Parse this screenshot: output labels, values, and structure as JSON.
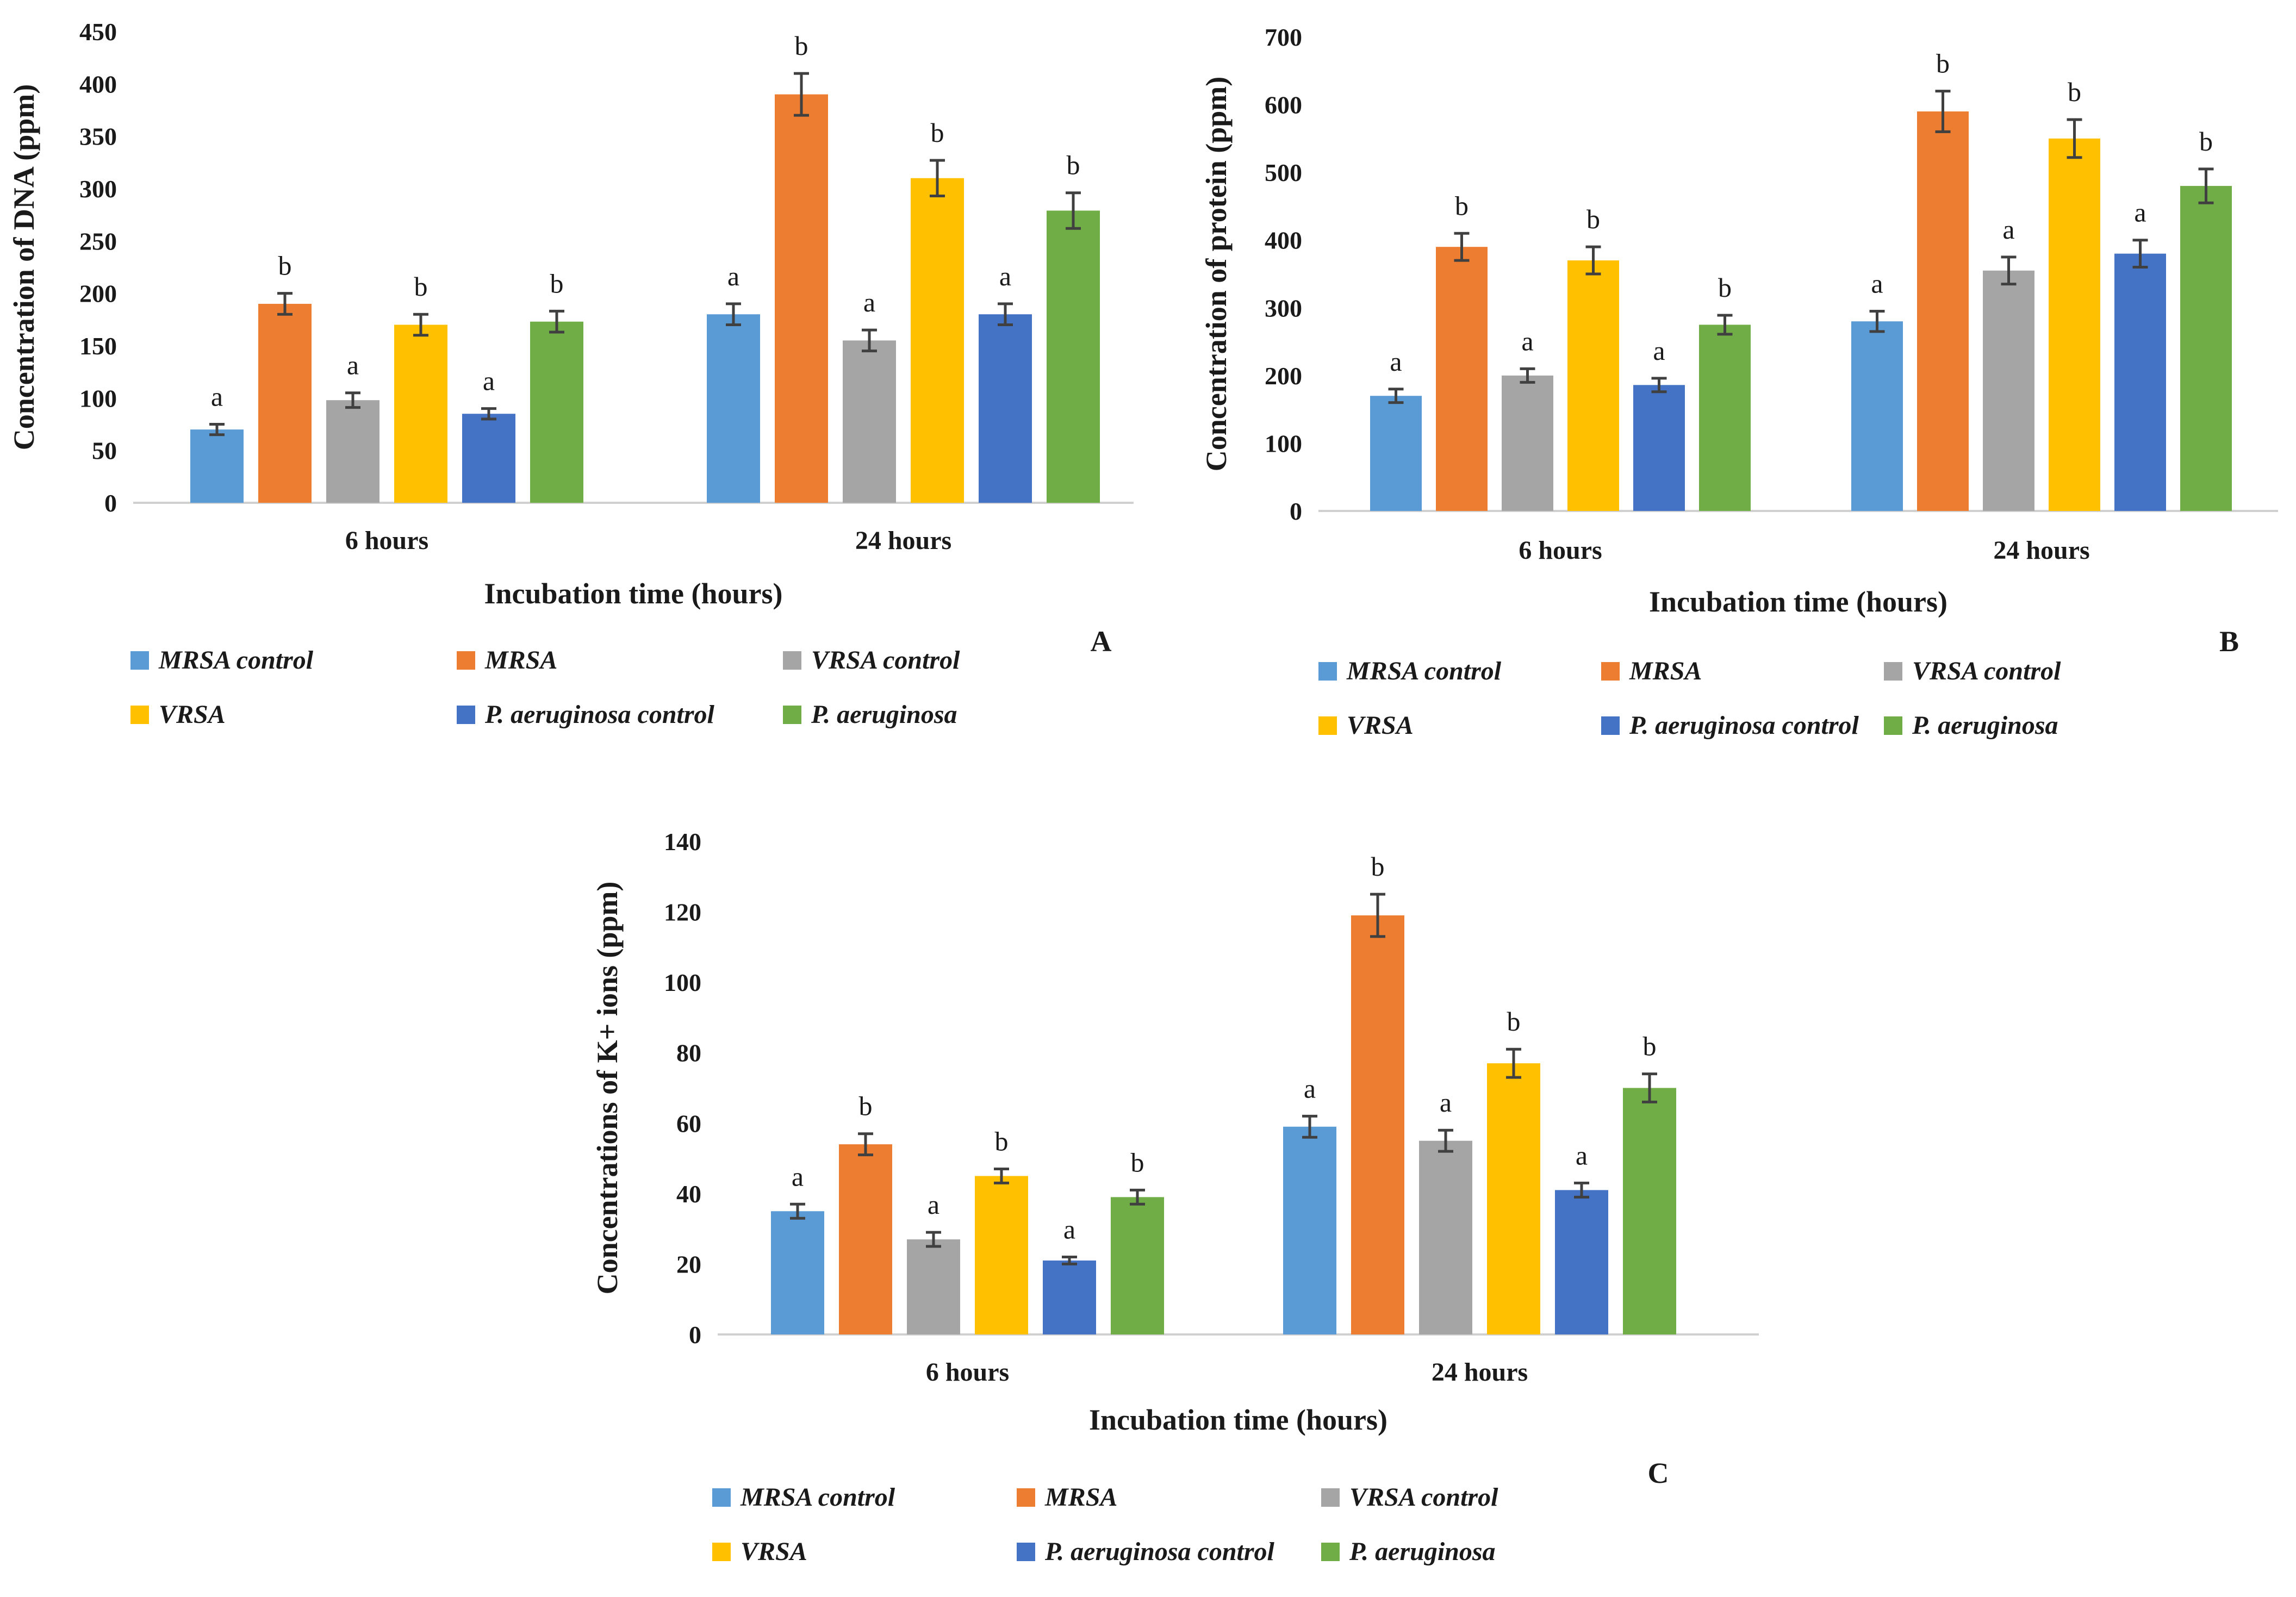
{
  "chart_data": [
    {
      "type": "bar",
      "panel": "A",
      "xlabel": "Incubation time (hours)",
      "ylabel": "Concentration of DNA (ppm)",
      "ylim": [
        0,
        450
      ],
      "yticks": [
        0,
        50,
        100,
        150,
        200,
        250,
        300,
        350,
        400,
        450
      ],
      "categories": [
        "6 hours",
        "24 hours"
      ],
      "series": [
        {
          "name": "MRSA control",
          "color": "#5b9bd5",
          "values": [
            70,
            180
          ],
          "errors": [
            5,
            10
          ],
          "sig": [
            "a",
            "a"
          ]
        },
        {
          "name": "MRSA",
          "color": "#ed7d31",
          "values": [
            190,
            390
          ],
          "errors": [
            10,
            20
          ],
          "sig": [
            "b",
            "b"
          ]
        },
        {
          "name": "VRSA control",
          "color": "#a5a5a5",
          "values": [
            98,
            155
          ],
          "errors": [
            7,
            10
          ],
          "sig": [
            "a",
            "a"
          ]
        },
        {
          "name": "VRSA",
          "color": "#ffc000",
          "values": [
            170,
            310
          ],
          "errors": [
            10,
            17
          ],
          "sig": [
            "b",
            "b"
          ]
        },
        {
          "name": "P. aeruginosa control",
          "color": "#4472c4",
          "values": [
            85,
            180
          ],
          "errors": [
            5,
            10
          ],
          "sig": [
            "a",
            "a"
          ]
        },
        {
          "name": "P. aeruginosa",
          "color": "#70ad47",
          "values": [
            173,
            279
          ],
          "errors": [
            10,
            17
          ],
          "sig": [
            "b",
            "b"
          ]
        }
      ]
    },
    {
      "type": "bar",
      "panel": "B",
      "xlabel": "Incubation time (hours)",
      "ylabel": "Concentration of protein (ppm)",
      "ylim": [
        0,
        700
      ],
      "yticks": [
        0,
        100,
        200,
        300,
        400,
        500,
        600,
        700
      ],
      "categories": [
        "6 hours",
        "24 hours"
      ],
      "series": [
        {
          "name": "MRSA control",
          "color": "#5b9bd5",
          "values": [
            170,
            280
          ],
          "errors": [
            10,
            15
          ],
          "sig": [
            "a",
            "a"
          ]
        },
        {
          "name": "MRSA",
          "color": "#ed7d31",
          "values": [
            390,
            590
          ],
          "errors": [
            20,
            30
          ],
          "sig": [
            "b",
            "b"
          ]
        },
        {
          "name": "VRSA control",
          "color": "#a5a5a5",
          "values": [
            200,
            355
          ],
          "errors": [
            10,
            20
          ],
          "sig": [
            "a",
            "a"
          ]
        },
        {
          "name": "VRSA",
          "color": "#ffc000",
          "values": [
            370,
            550
          ],
          "errors": [
            20,
            28
          ],
          "sig": [
            "b",
            "b"
          ]
        },
        {
          "name": "P. aeruginosa control",
          "color": "#4472c4",
          "values": [
            186,
            380
          ],
          "errors": [
            10,
            20
          ],
          "sig": [
            "a",
            "a"
          ]
        },
        {
          "name": "P. aeruginosa",
          "color": "#70ad47",
          "values": [
            275,
            480
          ],
          "errors": [
            14,
            25
          ],
          "sig": [
            "b",
            "b"
          ]
        }
      ]
    },
    {
      "type": "bar",
      "panel": "C",
      "xlabel": "Incubation time (hours)",
      "ylabel": "Concentrations of K+ ions (ppm)",
      "ylim": [
        0,
        140
      ],
      "yticks": [
        0,
        20,
        40,
        60,
        80,
        100,
        120,
        140
      ],
      "categories": [
        "6 hours",
        "24 hours"
      ],
      "series": [
        {
          "name": "MRSA control",
          "color": "#5b9bd5",
          "values": [
            35,
            59
          ],
          "errors": [
            2,
            3
          ],
          "sig": [
            "a",
            "a"
          ]
        },
        {
          "name": "MRSA",
          "color": "#ed7d31",
          "values": [
            54,
            119
          ],
          "errors": [
            3,
            6
          ],
          "sig": [
            "b",
            "b"
          ]
        },
        {
          "name": "VRSA control",
          "color": "#a5a5a5",
          "values": [
            27,
            55
          ],
          "errors": [
            2,
            3
          ],
          "sig": [
            "a",
            "a"
          ]
        },
        {
          "name": "VRSA",
          "color": "#ffc000",
          "values": [
            45,
            77
          ],
          "errors": [
            2,
            4
          ],
          "sig": [
            "b",
            "b"
          ]
        },
        {
          "name": "P. aeruginosa control",
          "color": "#4472c4",
          "values": [
            21,
            41
          ],
          "errors": [
            1,
            2
          ],
          "sig": [
            "a",
            "a"
          ]
        },
        {
          "name": "P. aeruginosa",
          "color": "#70ad47",
          "values": [
            39,
            70
          ],
          "errors": [
            2,
            4
          ],
          "sig": [
            "b",
            "b"
          ]
        }
      ]
    }
  ]
}
